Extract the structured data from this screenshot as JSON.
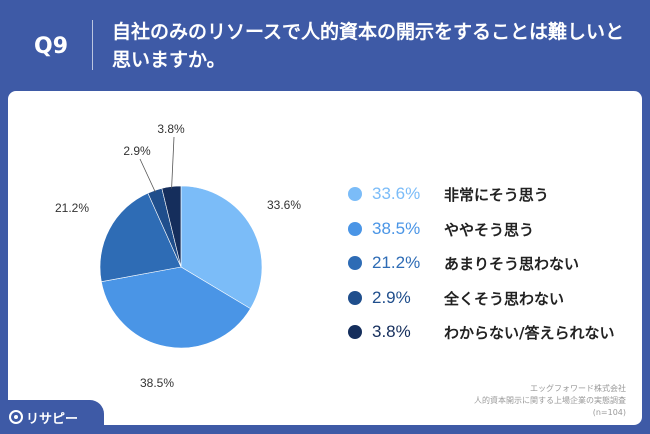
{
  "header": {
    "question_number": "Q9",
    "question_line1": "自社のみのリソースで人的資本の開示をすることは難しいと",
    "question_line2": "思いますか。"
  },
  "chart_data": {
    "type": "pie",
    "slices": [
      {
        "label": "非常にそう思う",
        "value": 33.6,
        "display": "33.6%",
        "color": "#7bbcf8"
      },
      {
        "label": "ややそう思う",
        "value": 38.5,
        "display": "38.5%",
        "color": "#4a95e6"
      },
      {
        "label": "あまりそう思わない",
        "value": 21.2,
        "display": "21.2%",
        "color": "#2e6cb5"
      },
      {
        "label": "全くそう思わない",
        "value": 2.9,
        "display": "2.9%",
        "color": "#1f4e8c"
      },
      {
        "label": "わからない/答えられない",
        "value": 3.8,
        "display": "3.8%",
        "color": "#152e5c"
      }
    ]
  },
  "source": {
    "line1": "エッグフォワード株式会社",
    "line2": "人的資本開示に関する上場企業の実態調査",
    "line3": "(n=104)"
  },
  "brand": {
    "name": "リサピー"
  }
}
